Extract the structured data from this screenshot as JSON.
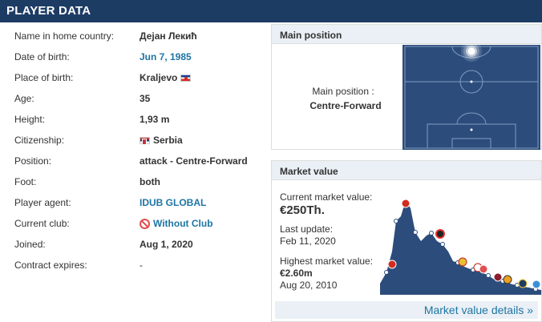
{
  "header": {
    "title": "PLAYER DATA"
  },
  "player_info": [
    {
      "label": "Name in home country:",
      "value": "Дејан Лекић",
      "style": "bold"
    },
    {
      "label": "Date of birth:",
      "value": "Jun 7, 1985",
      "style": "link"
    },
    {
      "label": "Place of birth:",
      "value": "Kraljevo",
      "style": "bold",
      "flag": "yugoslavia-flag"
    },
    {
      "label": "Age:",
      "value": "35",
      "style": "bold"
    },
    {
      "label": "Height:",
      "value": "1,93 m",
      "style": "bold"
    },
    {
      "label": "Citizenship:",
      "value": "Serbia",
      "style": "bold",
      "flag": "serbia-flag"
    },
    {
      "label": "Position:",
      "value": "attack - Centre-Forward",
      "style": "bold"
    },
    {
      "label": "Foot:",
      "value": "both",
      "style": "bold"
    },
    {
      "label": "Player agent:",
      "value": "IDUB GLOBAL",
      "style": "link"
    },
    {
      "label": "Current club:",
      "value": "Without Club",
      "style": "link",
      "icon": "without-club-icon"
    },
    {
      "label": "Joined:",
      "value": "Aug 1, 2020",
      "style": "bold"
    },
    {
      "label": "Contract expires:",
      "value": "-",
      "style": "plain"
    }
  ],
  "main_position": {
    "title": "Main position",
    "label": "Main position :",
    "value": "Centre-Forward"
  },
  "market_value": {
    "title": "Market value",
    "current_label": "Current market value:",
    "current_value": "€250Th.",
    "last_update_label": "Last update:",
    "last_update_value": "Feb 11, 2020",
    "highest_label": "Highest market value:",
    "highest_value": "€2.60m",
    "highest_date": "Aug 20, 2010",
    "details_link": "Market value details »"
  },
  "colors": {
    "header_bg": "#1d3c64",
    "link": "#1d75a3",
    "pitch": "#2c4d7c",
    "chart_fill": "#2c4d7c"
  }
}
